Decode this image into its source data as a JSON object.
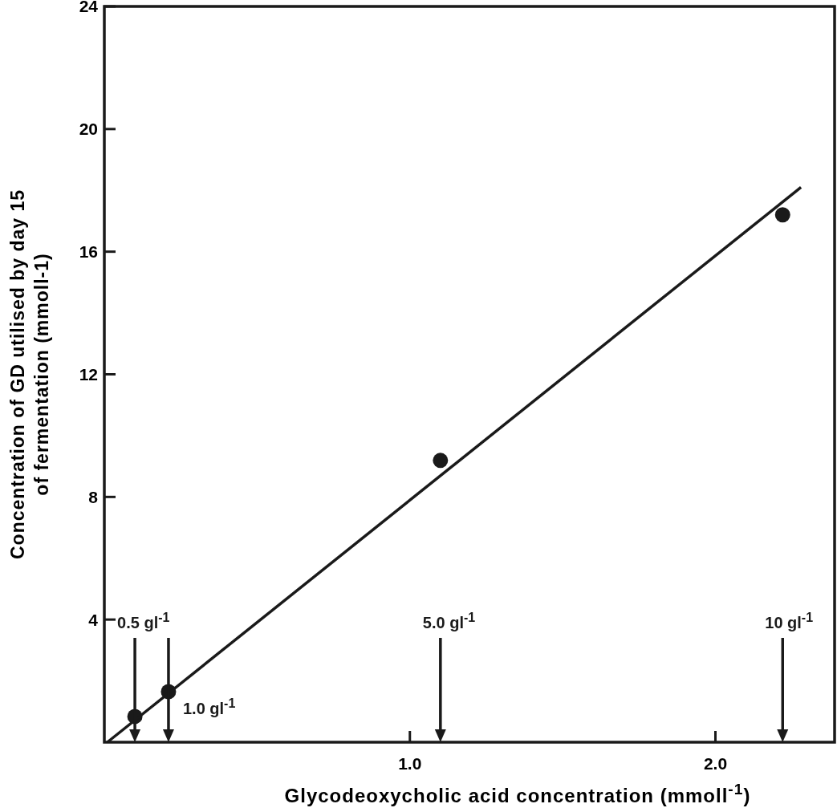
{
  "chart_data": {
    "type": "scatter",
    "xlabel": "Glycodeoxycholic acid concentration (mmoll$^{-1}$)",
    "ylabel": "Concentration of GD utilised by day 15\nof fermentation (mmoll-1)",
    "xlim": [
      0,
      2.39
    ],
    "ylim": [
      0,
      24
    ],
    "xticks": [
      {
        "value": 1,
        "label": "1.0"
      },
      {
        "value": 2,
        "label": "2.0"
      }
    ],
    "yticks": [
      4,
      8,
      12,
      16,
      20,
      24
    ],
    "marker": "circle",
    "grid": false,
    "series": [
      {
        "color": "#1a1a1a",
        "x": [
          0.1,
          0.21,
          1.1,
          2.22
        ],
        "values": [
          0.84,
          1.65,
          9.19,
          17.2
        ]
      },
      {
        "type": "line",
        "color": "#1a1a1a",
        "marker": "none",
        "line_style": "solid",
        "x": [
          0.01,
          2.28
        ],
        "values": [
          0,
          18.1
        ]
      }
    ],
    "annotations": [
      "0.5 gl$^{-1}$",
      "1.0 gl$^{-1}$",
      "5.0 gl$^{-1}$",
      "10 gl$^{-1}$"
    ]
  }
}
